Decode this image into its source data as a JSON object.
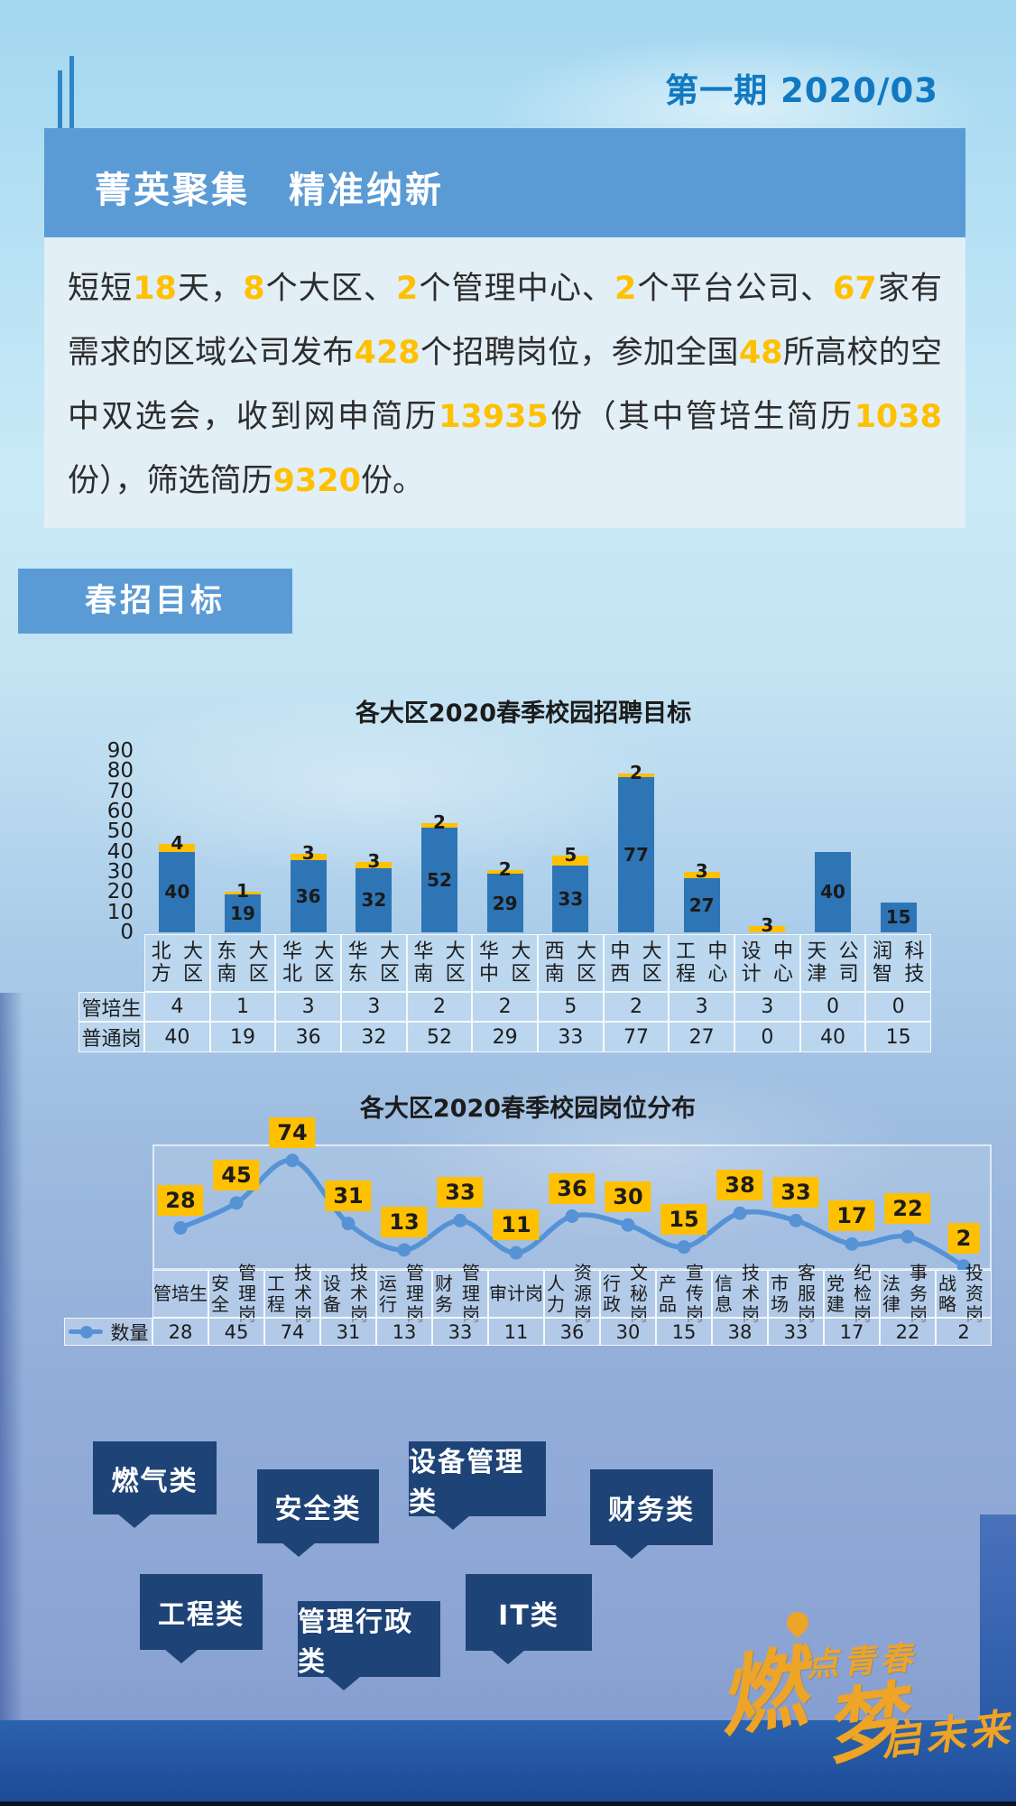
{
  "header": {
    "issue_label": "第一期 2020/03",
    "title": "菁英聚集　精准纳新"
  },
  "intro": {
    "segments": [
      {
        "t": "短短",
        "h": false
      },
      {
        "t": "18",
        "h": true
      },
      {
        "t": "天，",
        "h": false
      },
      {
        "t": "8",
        "h": true
      },
      {
        "t": "个大区、",
        "h": false
      },
      {
        "t": "2",
        "h": true
      },
      {
        "t": "个管理中心、",
        "h": false
      },
      {
        "t": "2",
        "h": true
      },
      {
        "t": "个平台公司、",
        "h": false
      },
      {
        "t": "67",
        "h": true
      },
      {
        "t": "家有需求的区域公司发布",
        "h": false
      },
      {
        "t": "428",
        "h": true
      },
      {
        "t": "个招聘岗位，参加全国",
        "h": false
      },
      {
        "t": "48",
        "h": true
      },
      {
        "t": "所高校的空中双选会，收到网申简历",
        "h": false
      },
      {
        "t": "13935",
        "h": true
      },
      {
        "t": "份（其中管培生简历",
        "h": false
      },
      {
        "t": "1038",
        "h": true
      },
      {
        "t": "份），筛选简历",
        "h": false
      },
      {
        "t": "9320",
        "h": true
      },
      {
        "t": "份。",
        "h": false
      }
    ]
  },
  "section": {
    "label": "春招目标"
  },
  "chart_data": [
    {
      "type": "bar",
      "stacked": true,
      "title": "各大区2020春季校园招聘目标",
      "categories": [
        "北方大区",
        "东南大区",
        "华北大区",
        "华东大区",
        "华南大区",
        "华中大区",
        "西南大区",
        "中西大区",
        "工程中心",
        "设计中心",
        "天津公司",
        "润智科技"
      ],
      "categories_display": [
        [
          "北方",
          "大区"
        ],
        [
          "东南",
          "大区"
        ],
        [
          "华北",
          "大区"
        ],
        [
          "华东",
          "大区"
        ],
        [
          "华南",
          "大区"
        ],
        [
          "华中",
          "大区"
        ],
        [
          "西南",
          "大区"
        ],
        [
          "中西",
          "大区"
        ],
        [
          "工程",
          "中心"
        ],
        [
          "设计",
          "中心"
        ],
        [
          "天津",
          "公司"
        ],
        [
          "润智",
          "科技"
        ]
      ],
      "series": [
        {
          "name": "管培生",
          "values": [
            4,
            1,
            3,
            3,
            2,
            2,
            5,
            2,
            3,
            3,
            0,
            0
          ],
          "color": "#ffc000"
        },
        {
          "name": "普通岗",
          "values": [
            40,
            19,
            36,
            32,
            52,
            29,
            33,
            77,
            27,
            0,
            40,
            15
          ],
          "color": "#2e75b6"
        }
      ],
      "ylim": [
        0,
        90
      ],
      "yticks": [
        0,
        10,
        20,
        30,
        40,
        50,
        60,
        70,
        80,
        90
      ],
      "grid": false,
      "legend_position": "none",
      "table_below": true
    },
    {
      "type": "line",
      "title": "各大区2020春季校园岗位分布",
      "categories": [
        "管培生",
        "安全管理岗",
        "工程技术岗",
        "设备技术岗",
        "运行管理岗",
        "财务管理岗",
        "审计岗",
        "人力资源岗",
        "行政文秘岗",
        "产品宣传岗",
        "信息技术岗",
        "市场客服岗",
        "党建纪检岗",
        "法律事务岗",
        "战略投资岗"
      ],
      "categories_display": [
        [
          "管培生"
        ],
        [
          "安全",
          "管理岗"
        ],
        [
          "工程",
          "技术岗"
        ],
        [
          "设备",
          "技术岗"
        ],
        [
          "运行",
          "管理岗"
        ],
        [
          "财务",
          "管理岗"
        ],
        [
          "审计岗"
        ],
        [
          "人力",
          "资源岗"
        ],
        [
          "行政",
          "文秘岗"
        ],
        [
          "产品",
          "宣传岗"
        ],
        [
          "信息",
          "技术岗"
        ],
        [
          "市场",
          "客服岗"
        ],
        [
          "党建",
          "纪检岗"
        ],
        [
          "法律",
          "事务岗"
        ],
        [
          "战略",
          "投资岗"
        ]
      ],
      "series": [
        {
          "name": "数量",
          "values": [
            28,
            45,
            74,
            31,
            13,
            33,
            11,
            36,
            30,
            15,
            38,
            33,
            17,
            22,
            2
          ],
          "color": "#5593d6"
        }
      ],
      "ylim": [
        0,
        80
      ],
      "data_label_bg": "#ffc000",
      "grid": false,
      "legend_position": "bottom-left",
      "table_below": true
    }
  ],
  "tags": [
    "燃气类",
    "安全类",
    "设备管理类",
    "财务类",
    "工程类",
    "管理行政类",
    "IT类"
  ],
  "logo": {
    "parts": [
      "燃",
      "点青春",
      "梦",
      "启未来"
    ]
  },
  "colors": {
    "banner_blue": "#5b9bd5",
    "issue_blue": "#1179c2",
    "highlight_yellow": "#ffc000",
    "bar_blue": "#2e75b6",
    "line_blue": "#5593d6",
    "tag_navy": "#1e4377",
    "logo_orange": "#eda427",
    "bottom_band_blue": "#2456a4"
  }
}
